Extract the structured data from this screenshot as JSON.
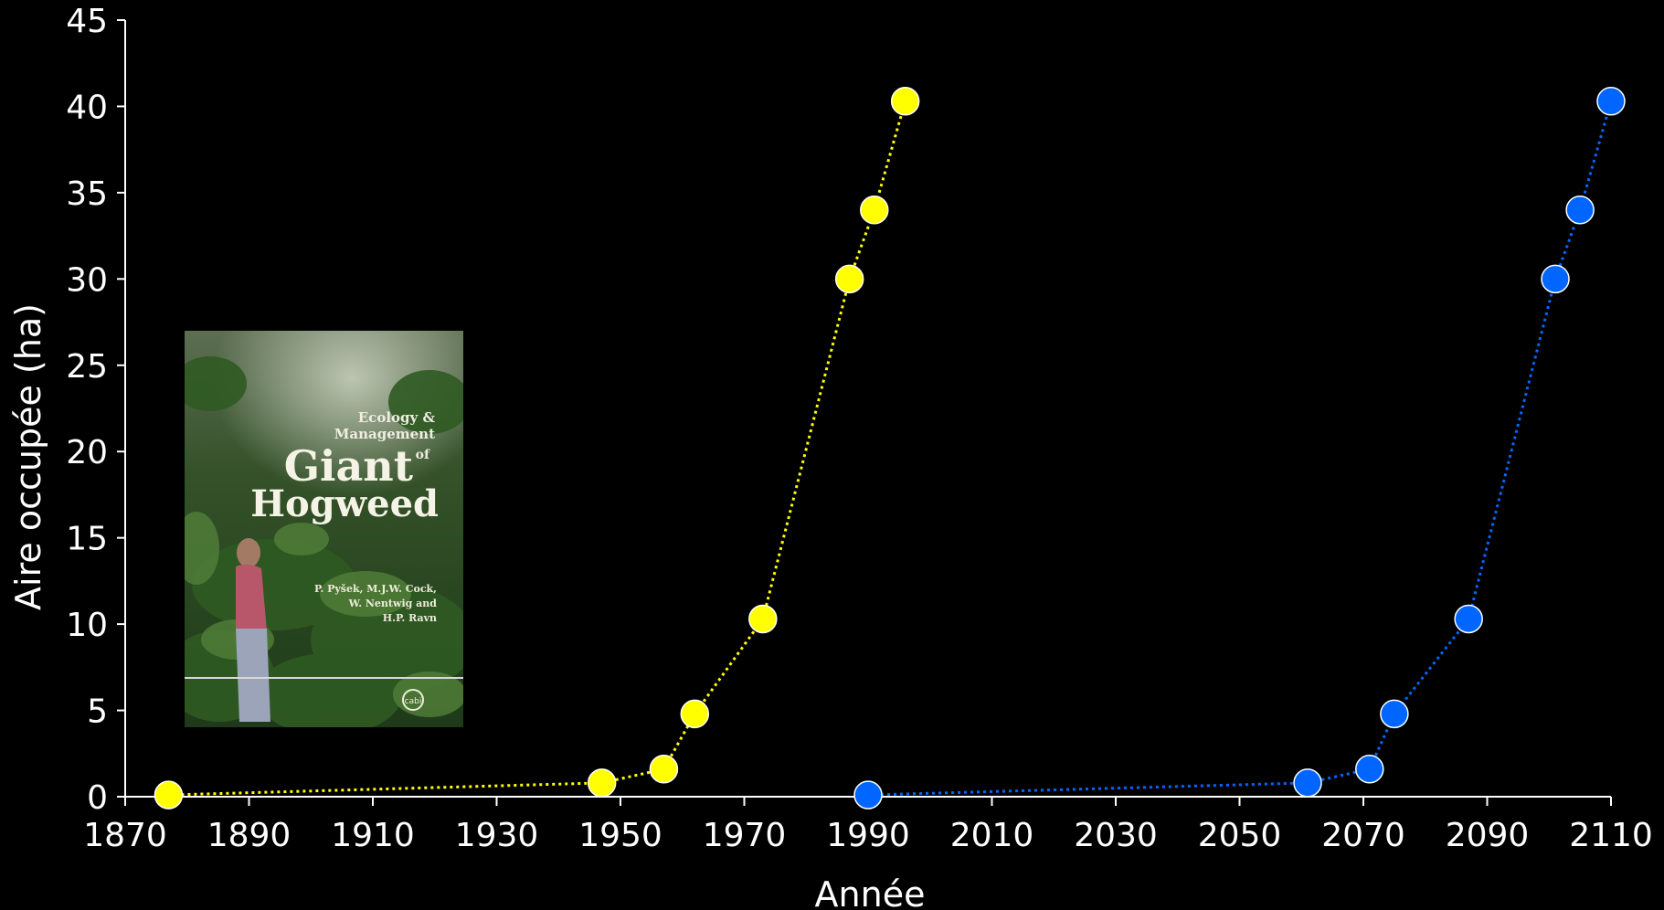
{
  "chart_data": {
    "type": "scatter",
    "xlabel": "Année",
    "ylabel": "Aire occupée (ha)",
    "xlim": [
      1870,
      2110
    ],
    "ylim": [
      0,
      45
    ],
    "x_ticks": [
      1870,
      1890,
      1910,
      1930,
      1950,
      1970,
      1990,
      2010,
      2030,
      2050,
      2070,
      2090,
      2110
    ],
    "y_ticks": [
      0,
      5,
      10,
      15,
      20,
      25,
      30,
      35,
      40,
      45
    ],
    "grid": false,
    "line_style": "dotted",
    "series": [
      {
        "color": "#ffff00",
        "points": [
          {
            "x": 1877,
            "y": 0.1
          },
          {
            "x": 1947,
            "y": 0.8
          },
          {
            "x": 1957,
            "y": 1.6
          },
          {
            "x": 1962,
            "y": 4.8
          },
          {
            "x": 1973,
            "y": 10.3
          },
          {
            "x": 1987,
            "y": 30.0
          },
          {
            "x": 1991,
            "y": 34.0
          },
          {
            "x": 1996,
            "y": 40.3
          }
        ]
      },
      {
        "color": "#0066ff",
        "points": [
          {
            "x": 1990,
            "y": 0.1
          },
          {
            "x": 2061,
            "y": 0.8
          },
          {
            "x": 2071,
            "y": 1.6
          },
          {
            "x": 2075,
            "y": 4.8
          },
          {
            "x": 2087,
            "y": 10.3
          },
          {
            "x": 2101,
            "y": 30.0
          },
          {
            "x": 2105,
            "y": 34.0
          },
          {
            "x": 2110,
            "y": 40.3
          }
        ]
      }
    ]
  },
  "book_cover": {
    "line1": "Ecology &",
    "line2": "Management",
    "line3": "Giant",
    "line3_suffix": "of",
    "line4": "Hogweed",
    "editors": [
      "P. Pyšek, M.J.W. Cock,",
      "W. Nentwig and",
      "H.P. Ravn"
    ],
    "publisher_mark": "cabi"
  }
}
